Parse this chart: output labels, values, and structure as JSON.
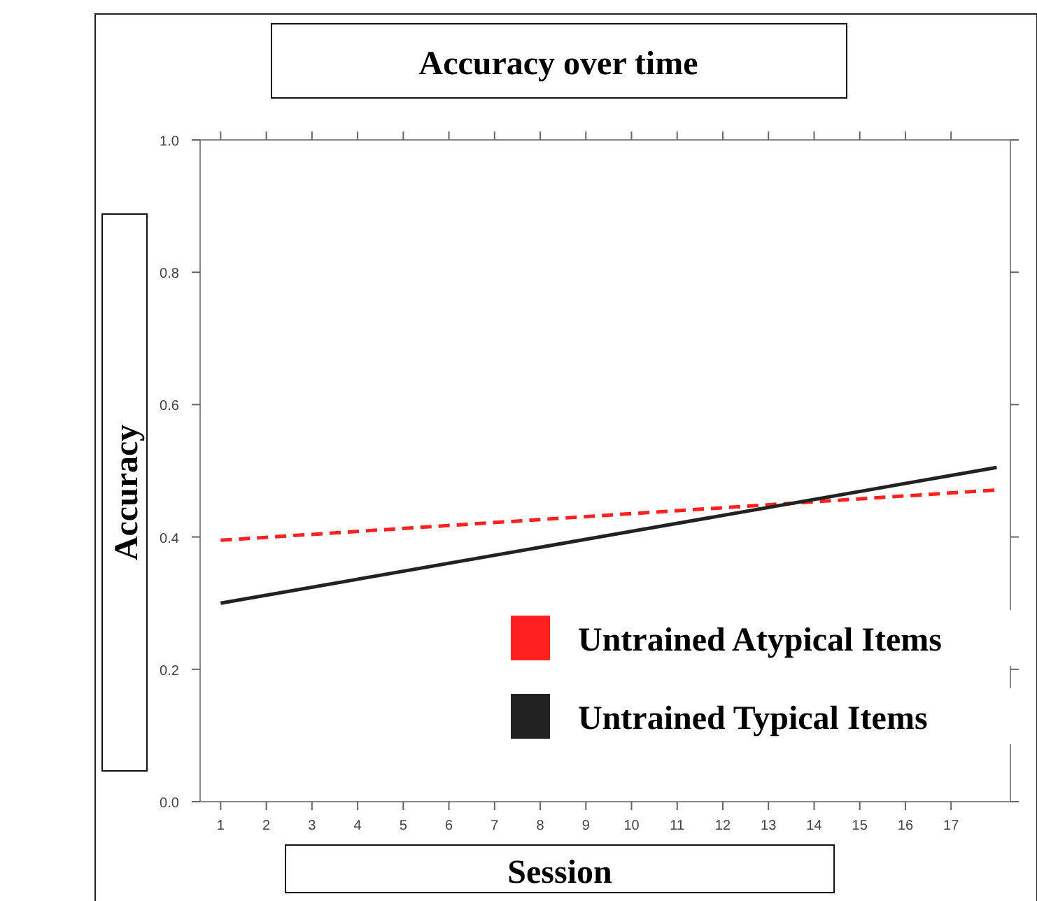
{
  "chart_data": {
    "type": "line",
    "title": "Accuracy over time",
    "xlabel": "Session",
    "ylabel": "Accuracy",
    "x": [
      1,
      18
    ],
    "series": [
      {
        "name": "Untrained Atypical Items",
        "color": "#ff2020",
        "values": [
          0.395,
          0.471
        ],
        "line_style": "dashed"
      },
      {
        "name": "Untrained Typical Items",
        "color": "#222222",
        "values": [
          0.3,
          0.505
        ],
        "line_style": "solid"
      }
    ],
    "xlim": [
      0.55,
      18.3
    ],
    "ylim": [
      0,
      1
    ],
    "xticks": [
      1,
      2,
      3,
      4,
      5,
      6,
      7,
      8,
      9,
      10,
      11,
      12,
      13,
      14,
      15,
      16,
      17
    ],
    "yticks": [
      {
        "value": 0,
        "label": "0.0"
      },
      {
        "value": 0.2,
        "label": "0.2"
      },
      {
        "value": 0.4,
        "label": "0.4"
      },
      {
        "value": 0.6,
        "label": "0.6"
      },
      {
        "value": 0.8,
        "label": "0.8"
      },
      {
        "value": 1,
        "label": "1.0"
      }
    ],
    "grid": false,
    "legend": "bottom right"
  }
}
